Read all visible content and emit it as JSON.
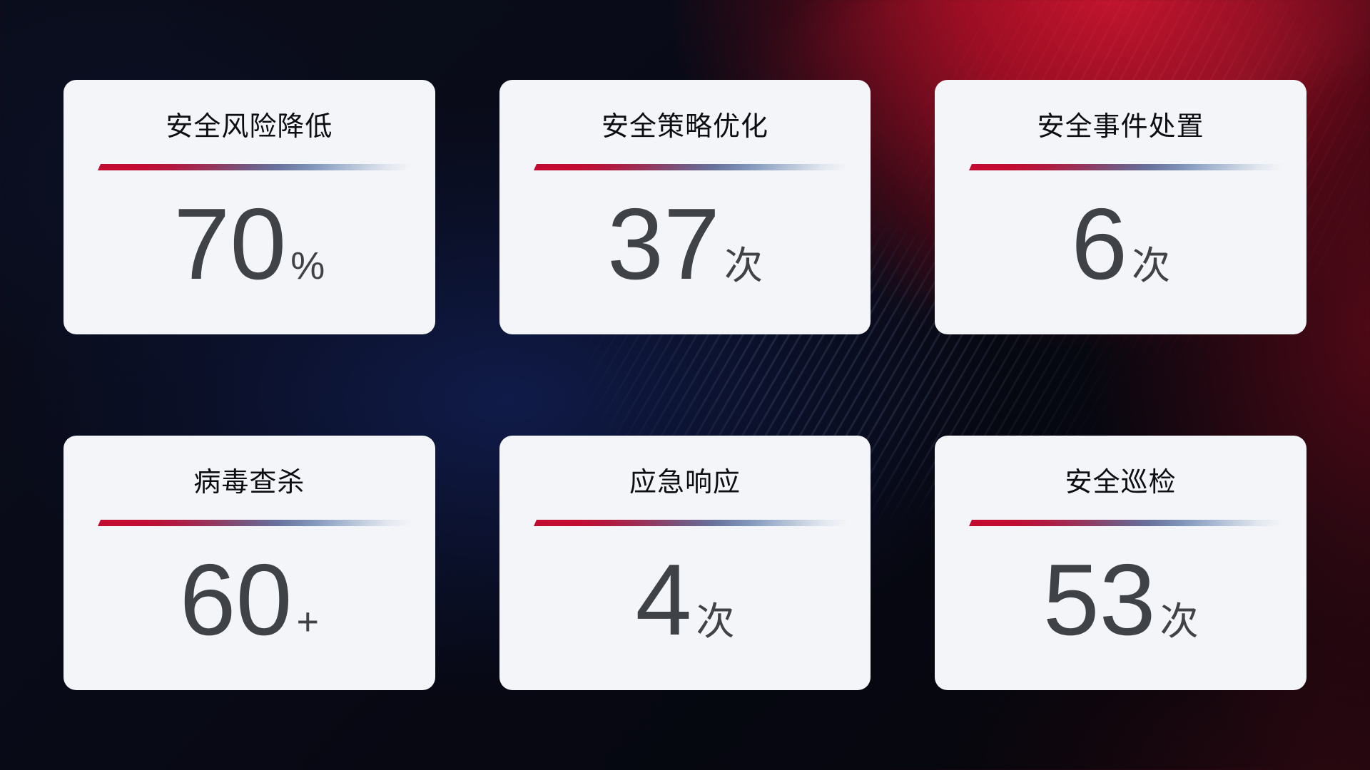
{
  "cards": [
    {
      "title": "安全风险降低",
      "value": "70",
      "suffix": "%"
    },
    {
      "title": "安全策略优化",
      "value": "37",
      "suffix": "次"
    },
    {
      "title": "安全事件处置",
      "value": "6",
      "suffix": "次"
    },
    {
      "title": "病毒查杀",
      "value": "60",
      "suffix": "+"
    },
    {
      "title": "应急响应",
      "value": "4",
      "suffix": "次"
    },
    {
      "title": "安全巡检",
      "value": "53",
      "suffix": "次"
    }
  ],
  "colors": {
    "background_base": "#05060c",
    "background_blue_glow": "#11214f",
    "background_red_glow": "#c40e28",
    "card_background": "#f4f5f8",
    "title_text": "#0d0e12",
    "value_text": "#3f4246",
    "divider_red": "#c30b31",
    "divider_blue": "#a2b3cf"
  }
}
